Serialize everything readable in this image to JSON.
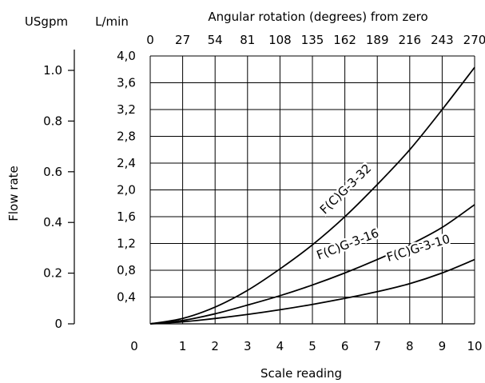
{
  "chart_data": {
    "type": "line",
    "top_axis_title": "Angular rotation (degrees) from zero",
    "left_unit_label": "USgpm",
    "right_unit_label": "L/min",
    "ylabel": "Flow rate",
    "xlabel": "Scale reading",
    "x_ticks": [
      "0",
      "1",
      "2",
      "3",
      "4",
      "5",
      "6",
      "7",
      "8",
      "9",
      "10"
    ],
    "top_ticks": [
      "0",
      "27",
      "54",
      "81",
      "108",
      "135",
      "162",
      "189",
      "216",
      "243",
      "270"
    ],
    "lmin_ticks": [
      "0,4",
      "0,8",
      "1,2",
      "1,6",
      "2,0",
      "2,4",
      "2,8",
      "3,2",
      "3,6",
      "4,0"
    ],
    "usgpm_ticks": [
      "0",
      "0.2",
      "0.4",
      "0.6",
      "0.8",
      "1.0"
    ],
    "xlim": [
      0,
      10
    ],
    "ylim_lmin": [
      0,
      4.0
    ],
    "grid": true,
    "series": [
      {
        "name": "F(C)G-3-32",
        "x": [
          0,
          1,
          2,
          3,
          4,
          5,
          6,
          7,
          8,
          9,
          10
        ],
        "y": [
          0,
          0.08,
          0.25,
          0.5,
          0.82,
          1.18,
          1.6,
          2.08,
          2.6,
          3.2,
          3.83
        ]
      },
      {
        "name": "F(C)G-3-16",
        "x": [
          0,
          1,
          2,
          3,
          4,
          5,
          6,
          7,
          8,
          9,
          10
        ],
        "y": [
          0,
          0.05,
          0.15,
          0.28,
          0.42,
          0.58,
          0.76,
          0.96,
          1.18,
          1.44,
          1.78
        ]
      },
      {
        "name": "F(C)G-3-10",
        "x": [
          0,
          1,
          2,
          3,
          4,
          5,
          6,
          7,
          8,
          9,
          10
        ],
        "y": [
          0,
          0.03,
          0.08,
          0.14,
          0.21,
          0.29,
          0.38,
          0.48,
          0.6,
          0.76,
          0.96
        ]
      }
    ]
  }
}
